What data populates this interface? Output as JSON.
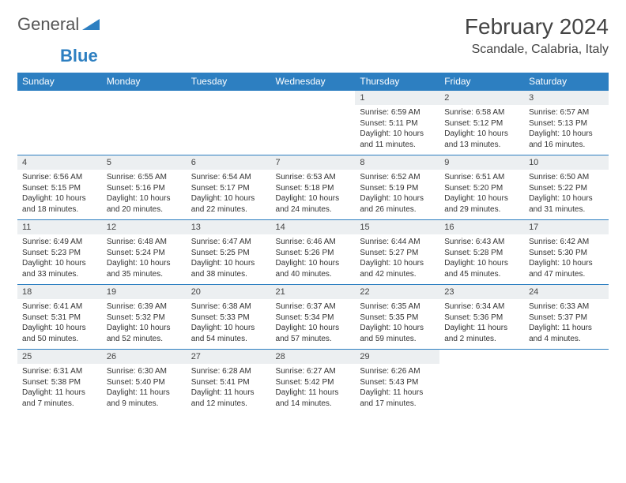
{
  "brand": {
    "name1": "General",
    "name2": "Blue"
  },
  "title": "February 2024",
  "subtitle": "Scandale, Calabria, Italy",
  "colors": {
    "accent": "#2d7fc1",
    "header_bg": "#2d7fc1",
    "daynum_bg": "#eceff1"
  },
  "weekdays": [
    "Sunday",
    "Monday",
    "Tuesday",
    "Wednesday",
    "Thursday",
    "Friday",
    "Saturday"
  ],
  "days": {
    "1": {
      "sunrise": "6:59 AM",
      "sunset": "5:11 PM",
      "daylight": "10 hours and 11 minutes."
    },
    "2": {
      "sunrise": "6:58 AM",
      "sunset": "5:12 PM",
      "daylight": "10 hours and 13 minutes."
    },
    "3": {
      "sunrise": "6:57 AM",
      "sunset": "5:13 PM",
      "daylight": "10 hours and 16 minutes."
    },
    "4": {
      "sunrise": "6:56 AM",
      "sunset": "5:15 PM",
      "daylight": "10 hours and 18 minutes."
    },
    "5": {
      "sunrise": "6:55 AM",
      "sunset": "5:16 PM",
      "daylight": "10 hours and 20 minutes."
    },
    "6": {
      "sunrise": "6:54 AM",
      "sunset": "5:17 PM",
      "daylight": "10 hours and 22 minutes."
    },
    "7": {
      "sunrise": "6:53 AM",
      "sunset": "5:18 PM",
      "daylight": "10 hours and 24 minutes."
    },
    "8": {
      "sunrise": "6:52 AM",
      "sunset": "5:19 PM",
      "daylight": "10 hours and 26 minutes."
    },
    "9": {
      "sunrise": "6:51 AM",
      "sunset": "5:20 PM",
      "daylight": "10 hours and 29 minutes."
    },
    "10": {
      "sunrise": "6:50 AM",
      "sunset": "5:22 PM",
      "daylight": "10 hours and 31 minutes."
    },
    "11": {
      "sunrise": "6:49 AM",
      "sunset": "5:23 PM",
      "daylight": "10 hours and 33 minutes."
    },
    "12": {
      "sunrise": "6:48 AM",
      "sunset": "5:24 PM",
      "daylight": "10 hours and 35 minutes."
    },
    "13": {
      "sunrise": "6:47 AM",
      "sunset": "5:25 PM",
      "daylight": "10 hours and 38 minutes."
    },
    "14": {
      "sunrise": "6:46 AM",
      "sunset": "5:26 PM",
      "daylight": "10 hours and 40 minutes."
    },
    "15": {
      "sunrise": "6:44 AM",
      "sunset": "5:27 PM",
      "daylight": "10 hours and 42 minutes."
    },
    "16": {
      "sunrise": "6:43 AM",
      "sunset": "5:28 PM",
      "daylight": "10 hours and 45 minutes."
    },
    "17": {
      "sunrise": "6:42 AM",
      "sunset": "5:30 PM",
      "daylight": "10 hours and 47 minutes."
    },
    "18": {
      "sunrise": "6:41 AM",
      "sunset": "5:31 PM",
      "daylight": "10 hours and 50 minutes."
    },
    "19": {
      "sunrise": "6:39 AM",
      "sunset": "5:32 PM",
      "daylight": "10 hours and 52 minutes."
    },
    "20": {
      "sunrise": "6:38 AM",
      "sunset": "5:33 PM",
      "daylight": "10 hours and 54 minutes."
    },
    "21": {
      "sunrise": "6:37 AM",
      "sunset": "5:34 PM",
      "daylight": "10 hours and 57 minutes."
    },
    "22": {
      "sunrise": "6:35 AM",
      "sunset": "5:35 PM",
      "daylight": "10 hours and 59 minutes."
    },
    "23": {
      "sunrise": "6:34 AM",
      "sunset": "5:36 PM",
      "daylight": "11 hours and 2 minutes."
    },
    "24": {
      "sunrise": "6:33 AM",
      "sunset": "5:37 PM",
      "daylight": "11 hours and 4 minutes."
    },
    "25": {
      "sunrise": "6:31 AM",
      "sunset": "5:38 PM",
      "daylight": "11 hours and 7 minutes."
    },
    "26": {
      "sunrise": "6:30 AM",
      "sunset": "5:40 PM",
      "daylight": "11 hours and 9 minutes."
    },
    "27": {
      "sunrise": "6:28 AM",
      "sunset": "5:41 PM",
      "daylight": "11 hours and 12 minutes."
    },
    "28": {
      "sunrise": "6:27 AM",
      "sunset": "5:42 PM",
      "daylight": "11 hours and 14 minutes."
    },
    "29": {
      "sunrise": "6:26 AM",
      "sunset": "5:43 PM",
      "daylight": "11 hours and 17 minutes."
    }
  },
  "labels": {
    "sunrise": "Sunrise:",
    "sunset": "Sunset:",
    "daylight": "Daylight:"
  },
  "layout": {
    "first_weekday_index": 4,
    "num_days": 29
  }
}
